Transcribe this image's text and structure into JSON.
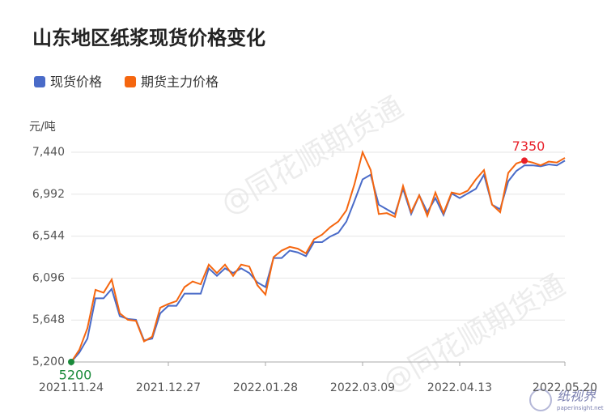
{
  "chart_data": {
    "type": "line",
    "title": "山东地区纸浆现货价格变化",
    "y_label": "元/吨",
    "watermark": "@同花顺期货通",
    "logo": {
      "name": "纸视界",
      "site": "paperinsight.net"
    },
    "categories": [
      "2021.11.24",
      null,
      null,
      null,
      null,
      null,
      null,
      null,
      null,
      null,
      null,
      null,
      "2021.12.27",
      null,
      null,
      null,
      null,
      null,
      null,
      null,
      null,
      null,
      null,
      null,
      "2022.01.28",
      null,
      null,
      null,
      null,
      null,
      null,
      null,
      null,
      null,
      null,
      null,
      "2022.03.09",
      null,
      null,
      null,
      null,
      null,
      null,
      null,
      null,
      null,
      null,
      null,
      "2022.04.13",
      null,
      null,
      null,
      null,
      null,
      null,
      null,
      null,
      null,
      null,
      null,
      null,
      "2022.05.20"
    ],
    "series": [
      {
        "name": "现货价格",
        "color": "#4a6bc8",
        "values": [
          5200,
          5300,
          5450,
          5880,
          5880,
          5980,
          5690,
          5660,
          5650,
          5430,
          5450,
          5720,
          5800,
          5800,
          5930,
          5930,
          5930,
          6200,
          6120,
          6200,
          6150,
          6200,
          6150,
          6050,
          6000,
          6310,
          6310,
          6390,
          6370,
          6330,
          6480,
          6480,
          6540,
          6580,
          6700,
          6920,
          7150,
          7200,
          6880,
          6830,
          6780,
          7050,
          6780,
          6980,
          6800,
          6950,
          6770,
          7000,
          6950,
          7000,
          7050,
          7200,
          6880,
          6830,
          7130,
          7240,
          7300,
          7300,
          7290,
          7310,
          7300,
          7350
        ]
      },
      {
        "name": "期货主力价格",
        "color": "#f5660f",
        "values": [
          5200,
          5330,
          5560,
          5970,
          5940,
          6080,
          5720,
          5650,
          5640,
          5420,
          5470,
          5780,
          5820,
          5850,
          6000,
          6060,
          6030,
          6240,
          6150,
          6240,
          6120,
          6240,
          6220,
          6020,
          5920,
          6320,
          6390,
          6430,
          6410,
          6360,
          6510,
          6560,
          6640,
          6700,
          6820,
          7100,
          7440,
          7250,
          6780,
          6790,
          6750,
          7080,
          6800,
          6980,
          6760,
          7010,
          6790,
          7010,
          6990,
          7030,
          7150,
          7250,
          6880,
          6800,
          7220,
          7320,
          7350,
          7330,
          7300,
          7340,
          7330,
          7380
        ]
      }
    ],
    "annotations": [
      {
        "series": 0,
        "point": 0,
        "color": "#1a8a3a"
      },
      {
        "series": 1,
        "point": 56,
        "color": "#e8202a"
      }
    ],
    "ylim": [
      5200,
      7440
    ],
    "yticks": [
      {
        "value": 5200,
        "label": "5,200"
      },
      {
        "value": 5648,
        "label": "5,648"
      },
      {
        "value": 6096,
        "label": "6,096"
      },
      {
        "value": 6544,
        "label": "6,544"
      },
      {
        "value": 6992,
        "label": "6,992"
      },
      {
        "value": 7440,
        "label": "7,440"
      }
    ],
    "grid": true
  }
}
